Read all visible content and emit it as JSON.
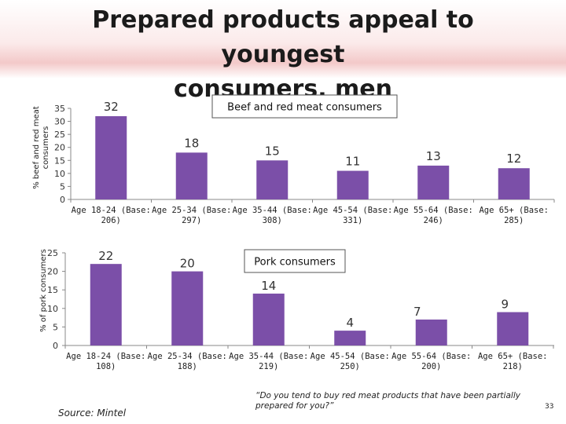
{
  "title": {
    "line1": "Prepared products appeal to youngest",
    "line2": "consumers, men"
  },
  "colors": {
    "bar": "#7b4fa8"
  },
  "chart_data": [
    {
      "type": "bar",
      "title": "Beef and red meat consumers",
      "ylabel": "% beef and red meat consumers",
      "ylabel_lines": [
        "% beef and red meat",
        "consumers"
      ],
      "ylim": [
        0,
        35
      ],
      "yticks": [
        0,
        5,
        10,
        15,
        20,
        25,
        30,
        35
      ],
      "categories": [
        [
          "Age 18-24 (Base:",
          "206)"
        ],
        [
          "Age 25-34 (Base:",
          "297)"
        ],
        [
          "Age 35-44 (Base:",
          "308)"
        ],
        [
          "Age 45-54 (Base:",
          "331)"
        ],
        [
          "Age 55-64 (Base:",
          "246)"
        ],
        [
          "Age 65+ (Base:",
          "285)"
        ]
      ],
      "values": [
        32,
        18,
        15,
        11,
        13,
        12
      ]
    },
    {
      "type": "bar",
      "title": "Pork consumers",
      "ylabel": "% of pork consumers",
      "ylabel_lines": [
        "% of pork consumers"
      ],
      "ylim": [
        0,
        25
      ],
      "yticks": [
        0,
        5,
        10,
        15,
        20,
        25
      ],
      "categories": [
        [
          "Age 18-24 (Base:",
          "108)"
        ],
        [
          "Age 25-34 (Base:",
          "188)"
        ],
        [
          "Age 35-44 (Base:",
          "219)"
        ],
        [
          "Age 45-54 (Base:",
          "250)"
        ],
        [
          "Age 55-64 (Base:",
          "200)"
        ],
        [
          "Age 65+ (Base:",
          "218)"
        ]
      ],
      "values": [
        22,
        20,
        14,
        4,
        7,
        9
      ]
    }
  ],
  "source": "Source: Mintel",
  "question": "“Do you tend to buy red meat products that have been partially prepared for you?”",
  "page_number": "33"
}
